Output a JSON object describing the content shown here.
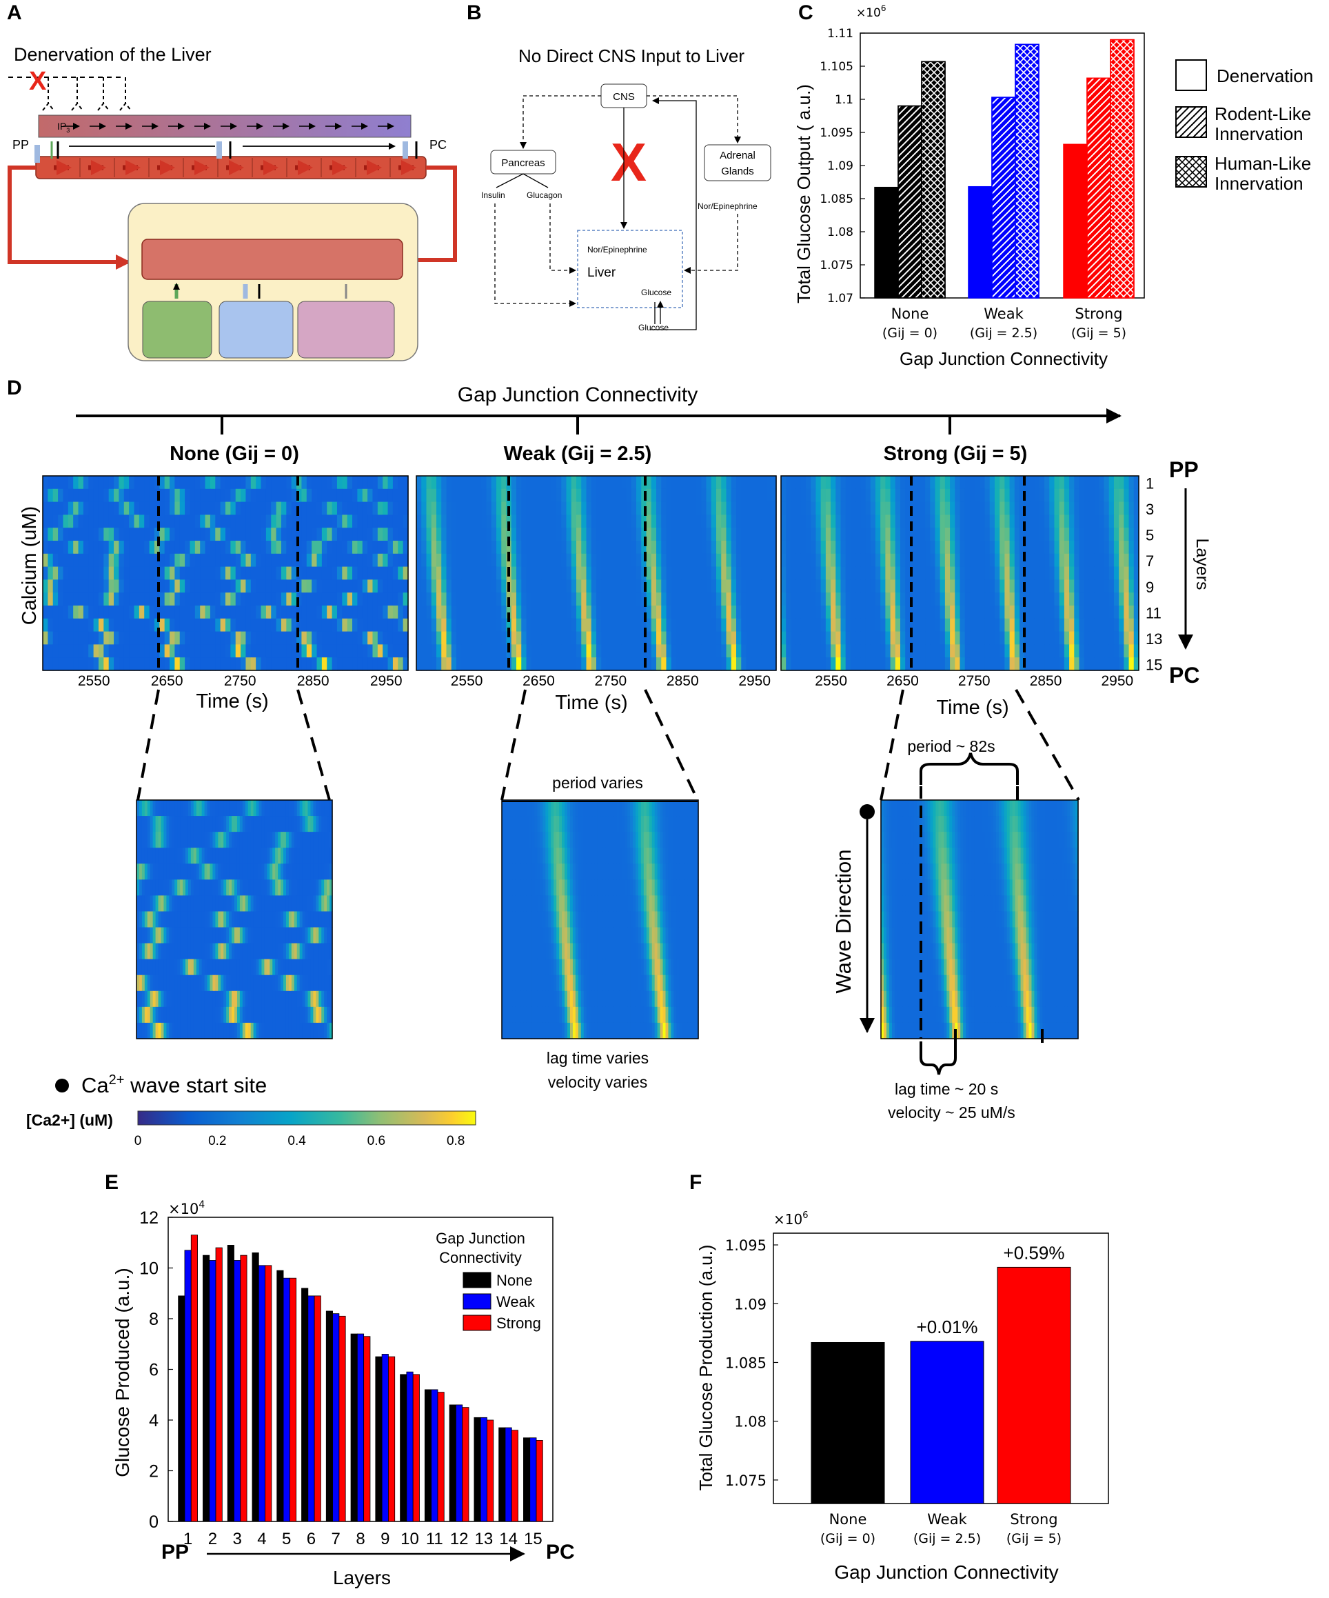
{
  "panel_labels": {
    "a": "A",
    "b": "B",
    "c": "C",
    "d": "D",
    "e": "E",
    "f": "F"
  },
  "panelA": {
    "title": "Denervation of the Liver",
    "cross": "X",
    "pp": "PP",
    "pc": "PC",
    "ip3": "IP",
    "ip3_sub": "3"
  },
  "panelB": {
    "title": "No Direct CNS Input to Liver",
    "cns": "CNS",
    "pancreas": "Pancreas",
    "adrenal_1": "Adrenal",
    "adrenal_2": "Glands",
    "insulin": "Insulin",
    "glucagon": "Glucagon",
    "nor_epi_right": "Nor/Epinephrine",
    "nor_epi_liver": "Nor/Epinephrine",
    "liver": "Liver",
    "glucose_in": "Glucose",
    "glucose_out": "Glucose",
    "cross": "X"
  },
  "panelC": {
    "ylabel": "Total Glucose Output ( a.u.)",
    "xlabel": "Gap Junction Connectivity",
    "multiplier": "×10",
    "multiplier_exp": "6",
    "yticks": [
      "1.07",
      "1.075",
      "1.08",
      "1.085",
      "1.09",
      "1.095",
      "1.1",
      "1.105",
      "1.11"
    ],
    "groups": [
      {
        "name": "None",
        "sub": "(Gij = 0)"
      },
      {
        "name": "Weak",
        "sub": "(Gij = 2.5)"
      },
      {
        "name": "Strong",
        "sub": "(Gij = 5)"
      }
    ],
    "legend": [
      {
        "label": "Denervation"
      },
      {
        "label": "Rodent-Like",
        "label2": "Innervation"
      },
      {
        "label": "Human-Like",
        "label2": "Innervation"
      }
    ],
    "colors": [
      "#000000",
      "#0000ff",
      "#ff0000"
    ]
  },
  "panelD": {
    "axis_title": "Gap Junction Connectivity",
    "heatmaps": [
      {
        "title": "None (Gij = 0)",
        "xlabel": "Time (s)"
      },
      {
        "title": "Weak (Gij = 2.5)",
        "xlabel": "Time (s)"
      },
      {
        "title": "Strong (Gij = 5)",
        "xlabel": "Time (s)"
      }
    ],
    "xticks": [
      "2550",
      "2650",
      "2750",
      "2850",
      "2950"
    ],
    "ylabel": "Calcium (uM)",
    "layers_label": "Layers",
    "layer_ticks": [
      "1",
      "3",
      "5",
      "7",
      "9",
      "11",
      "13",
      "15"
    ],
    "pp": "PP",
    "pc": "PC",
    "zoom_weak_top": "period varies",
    "zoom_weak_bottom1": "lag time varies",
    "zoom_weak_bottom2": "velocity varies",
    "zoom_strong_top": "period ~ 82s",
    "zoom_strong_bottom1": "lag time ~ 20 s",
    "zoom_strong_bottom2": "velocity ~ 25 uM/s",
    "wave_direction": "Wave Direction",
    "start_site_pre": "Ca",
    "start_site_sup": "2+",
    "start_site_post": " wave start site",
    "colorbar_label": "[Ca2+] (uM)",
    "colorbar_ticks": [
      "0",
      "0.2",
      "0.4",
      "0.6",
      "0.8"
    ]
  },
  "chart_data": [
    {
      "type": "bar",
      "panel": "C",
      "title": "",
      "xlabel": "Gap Junction Connectivity",
      "ylabel": "Total Glucose Output ( a.u.)",
      "ylim": [
        1.07,
        1.11
      ],
      "scale": "x1e6",
      "categories": [
        "None",
        "Weak",
        "Strong"
      ],
      "series": [
        {
          "name": "Denervation",
          "values": [
            1.0867,
            1.0868,
            1.0932
          ]
        },
        {
          "name": "Rodent-Like Innervation",
          "values": [
            1.099,
            1.1003,
            1.1032
          ]
        },
        {
          "name": "Human-Like Innervation",
          "values": [
            1.1057,
            1.1083,
            1.109
          ]
        }
      ]
    },
    {
      "type": "bar",
      "panel": "E",
      "title": "",
      "xlabel": "Layers",
      "ylabel": "Glucose Produced (a.u.)",
      "ylim": [
        0,
        12
      ],
      "scale": "x1e4",
      "yticks": [
        "0",
        "2",
        "4",
        "6",
        "8",
        "10",
        "12"
      ],
      "multiplier": "×10",
      "multiplier_exp": "4",
      "categories": [
        "1",
        "2",
        "3",
        "4",
        "5",
        "6",
        "7",
        "8",
        "9",
        "10",
        "11",
        "12",
        "13",
        "14",
        "15"
      ],
      "legend_title1": "Gap Junction",
      "legend_title2": "Connectivity",
      "pp": "PP",
      "pc": "PC",
      "series": [
        {
          "name": "None",
          "color": "#000000",
          "values": [
            8.9,
            10.5,
            10.9,
            10.6,
            9.9,
            9.2,
            8.3,
            7.4,
            6.5,
            5.8,
            5.2,
            4.6,
            4.1,
            3.7,
            3.3
          ]
        },
        {
          "name": "Weak",
          "color": "#0000ff",
          "values": [
            10.7,
            10.3,
            10.3,
            10.1,
            9.6,
            8.9,
            8.2,
            7.4,
            6.6,
            5.9,
            5.2,
            4.6,
            4.1,
            3.7,
            3.3
          ]
        },
        {
          "name": "Strong",
          "color": "#ff0000",
          "values": [
            11.3,
            10.8,
            10.5,
            10.1,
            9.6,
            8.9,
            8.1,
            7.3,
            6.5,
            5.8,
            5.1,
            4.5,
            4.0,
            3.6,
            3.2
          ]
        }
      ]
    },
    {
      "type": "bar",
      "panel": "F",
      "title": "",
      "xlabel": "Gap Junction Connectivity",
      "ylabel": "Total Glucose Production (a.u.)",
      "ylim": [
        1.073,
        1.096
      ],
      "scale": "x1e6",
      "yticks": [
        "1.075",
        "1.08",
        "1.085",
        "1.09",
        "1.095"
      ],
      "multiplier": "×10",
      "multiplier_exp": "6",
      "categories": [
        "None",
        "Weak",
        "Strong"
      ],
      "subs": [
        "(Gij = 0)",
        "(Gij = 2.5)",
        "(Gij = 5)"
      ],
      "values": [
        1.0867,
        1.0868,
        1.0931
      ],
      "colors": [
        "#000000",
        "#0000ff",
        "#ff0000"
      ],
      "annotations": [
        "",
        "+0.01%",
        "+0.59%"
      ]
    }
  ]
}
